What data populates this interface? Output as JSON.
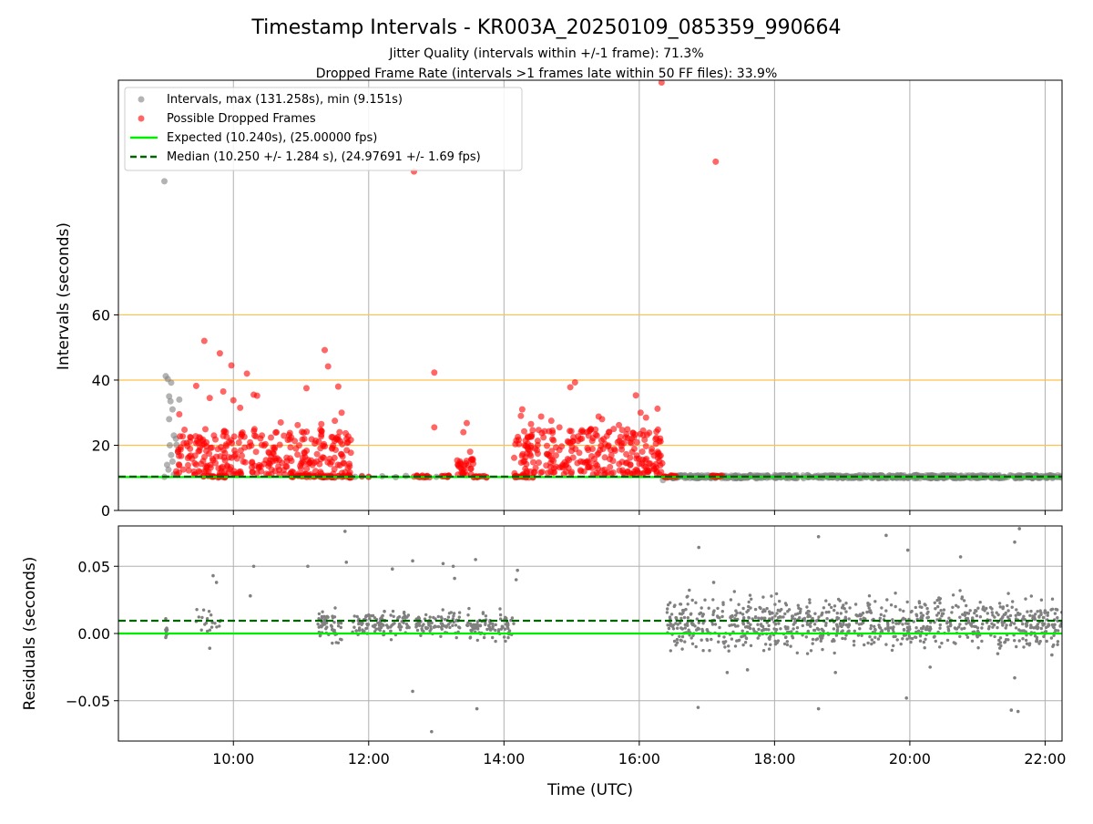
{
  "chart_data": {
    "type": "scatter",
    "title": "Timestamp Intervals - KR003A_20250109_085359_990664",
    "subtitles": [
      "Jitter Quality (intervals within +/-1 frame): 71.3%",
      "Dropped Frame Rate (intervals >1 frames late within 50 FF files): 33.9%"
    ],
    "xlabel": "Time (UTC)",
    "xlim_hours": [
      8.3,
      22.25
    ],
    "x_ticks": [
      {
        "value": 10,
        "label": "10:00"
      },
      {
        "value": 12,
        "label": "12:00"
      },
      {
        "value": 14,
        "label": "14:00"
      },
      {
        "value": 16,
        "label": "16:00"
      },
      {
        "value": 18,
        "label": "18:00"
      },
      {
        "value": 20,
        "label": "20:00"
      },
      {
        "value": 22,
        "label": "22:00"
      }
    ],
    "colors": {
      "intervals": "#808080",
      "dropped": "#ff0000",
      "expected": "#00ee00",
      "median": "#006400",
      "threshold": "#ffc04d",
      "grid": "#b0b0b0"
    },
    "top_panel": {
      "ylabel": "Intervals (seconds)",
      "ylim": [
        0,
        132
      ],
      "y_ticks": [
        0,
        20,
        40,
        60
      ],
      "threshold_lines": [
        20,
        40,
        60
      ],
      "expected_value": 10.24,
      "median_value": 10.25,
      "legend_position": "upper-left",
      "legend": {
        "intervals": "Intervals, max (131.258s), min (9.151s)",
        "dropped": "Possible Dropped Frames",
        "expected": "Expected (10.240s), (25.00000 fps)",
        "median": "Median (10.250 +/- 1.284 s), (24.97691 +/- 1.69 fps)"
      },
      "intervals_points": [
        [
          8.98,
          10.3
        ],
        [
          9.0,
          41.2
        ],
        [
          9.03,
          40.3
        ],
        [
          9.05,
          35.0
        ],
        [
          9.07,
          33.5
        ],
        [
          9.1,
          31.0
        ],
        [
          9.08,
          39.2
        ],
        [
          9.12,
          23.0
        ],
        [
          9.15,
          22.0
        ],
        [
          9.16,
          20.1
        ],
        [
          9.18,
          18.0
        ],
        [
          9.2,
          34.0
        ],
        [
          9.05,
          28.0
        ],
        [
          9.06,
          20.0
        ],
        [
          9.08,
          17.0
        ],
        [
          9.1,
          15.0
        ],
        [
          9.02,
          14.0
        ],
        [
          9.04,
          12.5
        ],
        [
          9.12,
          11.0
        ],
        [
          8.98,
          101.0
        ],
        [
          11.2,
          10.4
        ],
        [
          11.5,
          10.1
        ],
        [
          11.8,
          10.3
        ],
        [
          11.9,
          10.6
        ],
        [
          12.0,
          10.3
        ],
        [
          12.2,
          10.5
        ],
        [
          12.4,
          10.2
        ],
        [
          12.55,
          10.6
        ],
        [
          13.0,
          10.3
        ],
        [
          13.7,
          10.4
        ],
        [
          14.2,
          10.2
        ],
        [
          16.35,
          9.3
        ],
        [
          16.4,
          10.0
        ],
        [
          16.9,
          10.4
        ],
        [
          17.4,
          10.6
        ],
        [
          17.8,
          10.4
        ],
        [
          18.2,
          10.3
        ],
        [
          18.7,
          10.6
        ],
        [
          19.2,
          10.4
        ],
        [
          19.8,
          10.5
        ],
        [
          20.2,
          10.3
        ],
        [
          20.7,
          10.4
        ],
        [
          21.0,
          10.6
        ],
        [
          21.4,
          10.3
        ],
        [
          21.8,
          10.4
        ],
        [
          22.1,
          10.3
        ]
      ],
      "bands": [
        {
          "from": 16.42,
          "to": 22.25,
          "low": 9.8,
          "high": 10.9
        }
      ],
      "dropped_points": [
        [
          9.57,
          52.0
        ],
        [
          9.8,
          48.2
        ],
        [
          9.97,
          44.5
        ],
        [
          10.2,
          42.0
        ],
        [
          10.3,
          35.5
        ],
        [
          9.85,
          36.5
        ],
        [
          10.35,
          35.2
        ],
        [
          9.65,
          34.5
        ],
        [
          10.0,
          33.8
        ],
        [
          10.1,
          31.5
        ],
        [
          9.2,
          29.5
        ],
        [
          9.45,
          38.2
        ],
        [
          11.35,
          49.2
        ],
        [
          11.4,
          44.2
        ],
        [
          11.08,
          37.5
        ],
        [
          11.55,
          38.0
        ],
        [
          11.6,
          30.0
        ],
        [
          10.7,
          27.0
        ],
        [
          10.95,
          26.2
        ],
        [
          11.3,
          26.5
        ],
        [
          11.5,
          27.5
        ],
        [
          12.97,
          42.3
        ],
        [
          12.97,
          25.5
        ],
        [
          13.45,
          26.8
        ],
        [
          13.4,
          24.0
        ],
        [
          13.5,
          18.0
        ],
        [
          14.27,
          31.0
        ],
        [
          14.25,
          29.0
        ],
        [
          14.4,
          26.5
        ],
        [
          15.05,
          39.3
        ],
        [
          14.98,
          37.8
        ],
        [
          15.95,
          35.3
        ],
        [
          16.02,
          30.0
        ],
        [
          16.27,
          31.2
        ],
        [
          16.1,
          28.5
        ],
        [
          15.4,
          28.8
        ],
        [
          15.45,
          28.0
        ],
        [
          14.55,
          28.8
        ],
        [
          14.7,
          27.5
        ],
        [
          15.7,
          26.2
        ],
        [
          14.82,
          25.5
        ],
        [
          15.55,
          24.0
        ],
        [
          12.67,
          104.0
        ],
        [
          16.33,
          131.3
        ],
        [
          17.13,
          107.0
        ],
        [
          13.35,
          15.0
        ],
        [
          13.38,
          12.5
        ],
        [
          13.32,
          14.0
        ],
        [
          13.4,
          11.2
        ],
        [
          12.0,
          10.3
        ],
        [
          11.9,
          10.4
        ]
      ],
      "dropped_clusters": [
        {
          "from": 9.15,
          "to": 11.75,
          "low": 11.0,
          "high": 25.0,
          "count": 300
        },
        {
          "from": 14.15,
          "to": 16.35,
          "low": 11.0,
          "high": 25.0,
          "count": 280
        },
        {
          "from": 13.3,
          "to": 13.55,
          "low": 10.6,
          "high": 16.0,
          "count": 25
        }
      ],
      "dropped_baseline": [
        [
          9.55,
          9.9
        ],
        [
          10.85,
          11.75
        ],
        [
          12.65,
          12.9
        ],
        [
          13.05,
          13.25
        ],
        [
          13.55,
          13.75
        ],
        [
          14.15,
          14.45
        ],
        [
          16.35,
          16.55
        ],
        [
          17.05,
          17.25
        ]
      ]
    },
    "bottom_panel": {
      "ylabel": "Residuals (seconds)",
      "ylim": [
        -0.08,
        0.08
      ],
      "y_ticks": [
        {
          "value": -0.05,
          "label": "−0.05"
        },
        {
          "value": 0.0,
          "label": "0.00"
        },
        {
          "value": 0.05,
          "label": "0.05"
        }
      ],
      "expected_value": 0.0,
      "median_value": 0.0095,
      "points": [
        [
          10.25,
          0.028
        ],
        [
          10.3,
          0.05
        ],
        [
          11.1,
          0.05
        ],
        [
          11.65,
          0.076
        ],
        [
          11.67,
          0.053
        ],
        [
          12.35,
          0.048
        ],
        [
          12.65,
          0.054
        ],
        [
          12.65,
          -0.043
        ],
        [
          12.93,
          -0.073
        ],
        [
          13.1,
          0.052
        ],
        [
          13.25,
          0.05
        ],
        [
          13.27,
          0.041
        ],
        [
          13.6,
          -0.056
        ],
        [
          13.58,
          0.055
        ],
        [
          14.2,
          0.047
        ],
        [
          14.18,
          0.04
        ],
        [
          16.88,
          0.064
        ],
        [
          16.87,
          -0.055
        ],
        [
          17.1,
          0.038
        ],
        [
          18.65,
          -0.056
        ],
        [
          18.65,
          0.072
        ],
        [
          19.65,
          0.073
        ],
        [
          19.95,
          -0.048
        ],
        [
          19.97,
          0.062
        ],
        [
          20.75,
          0.057
        ],
        [
          21.55,
          0.068
        ],
        [
          21.62,
          0.078
        ],
        [
          21.55,
          -0.033
        ],
        [
          21.5,
          -0.057
        ],
        [
          21.6,
          -0.058
        ],
        [
          9.0,
          0.011
        ],
        [
          9.0,
          -0.003
        ],
        [
          9.45,
          0.009
        ],
        [
          9.65,
          -0.011
        ],
        [
          9.7,
          0.043
        ],
        [
          9.75,
          0.038
        ],
        [
          17.3,
          -0.029
        ],
        [
          17.6,
          -0.027
        ],
        [
          18.9,
          -0.029
        ],
        [
          20.3,
          -0.025
        ],
        [
          21.3,
          -0.015
        ],
        [
          22.1,
          -0.016
        ]
      ],
      "clusters": [
        {
          "from": 8.98,
          "to": 9.03,
          "low": -0.004,
          "high": 0.012,
          "count": 8
        },
        {
          "from": 9.45,
          "to": 9.82,
          "low": -0.006,
          "high": 0.022,
          "count": 20
        },
        {
          "from": 11.25,
          "to": 11.6,
          "low": -0.012,
          "high": 0.025,
          "count": 60
        },
        {
          "from": 11.75,
          "to": 12.6,
          "low": -0.006,
          "high": 0.02,
          "count": 110
        },
        {
          "from": 12.7,
          "to": 13.35,
          "low": -0.005,
          "high": 0.02,
          "count": 90
        },
        {
          "from": 13.45,
          "to": 14.15,
          "low": -0.008,
          "high": 0.02,
          "count": 90
        },
        {
          "from": 16.4,
          "to": 22.25,
          "low": -0.02,
          "high": 0.035,
          "count": 900
        }
      ]
    }
  }
}
